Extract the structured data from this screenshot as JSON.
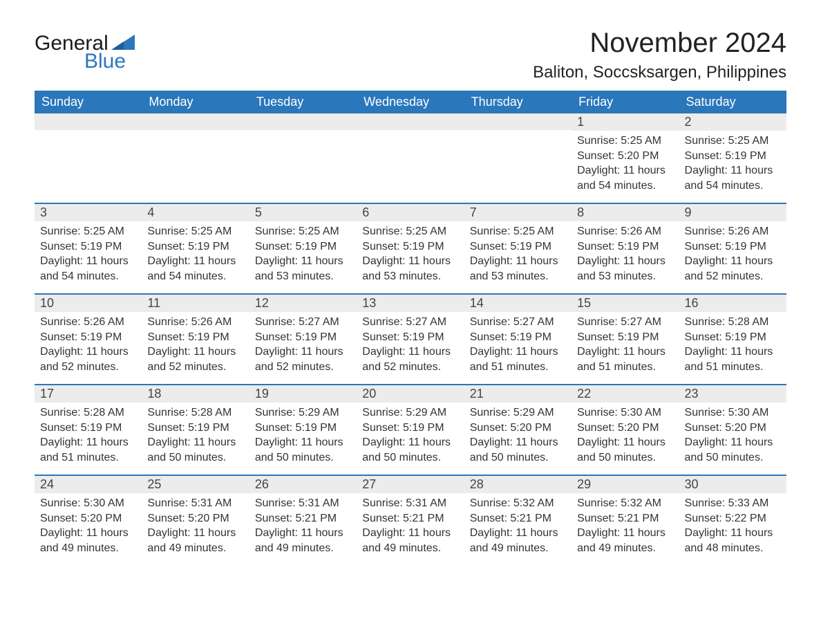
{
  "brand": {
    "word1": "General",
    "word2": "Blue"
  },
  "colors": {
    "header_bg": "#2a77bb",
    "header_text": "#ffffff",
    "daynum_bg": "#ececec",
    "text": "#333333",
    "brand_blue": "#2a77bb",
    "sep": "#2a77bb",
    "page_bg": "#ffffff"
  },
  "title": "November 2024",
  "location": "Baliton, Soccsksargen, Philippines",
  "weekdays": [
    "Sunday",
    "Monday",
    "Tuesday",
    "Wednesday",
    "Thursday",
    "Friday",
    "Saturday"
  ],
  "weeks": [
    [
      {
        "n": "",
        "sunrise": "",
        "sunset": "",
        "daylight": ""
      },
      {
        "n": "",
        "sunrise": "",
        "sunset": "",
        "daylight": ""
      },
      {
        "n": "",
        "sunrise": "",
        "sunset": "",
        "daylight": ""
      },
      {
        "n": "",
        "sunrise": "",
        "sunset": "",
        "daylight": ""
      },
      {
        "n": "",
        "sunrise": "",
        "sunset": "",
        "daylight": ""
      },
      {
        "n": "1",
        "sunrise": "Sunrise: 5:25 AM",
        "sunset": "Sunset: 5:20 PM",
        "daylight": "Daylight: 11 hours and 54 minutes."
      },
      {
        "n": "2",
        "sunrise": "Sunrise: 5:25 AM",
        "sunset": "Sunset: 5:19 PM",
        "daylight": "Daylight: 11 hours and 54 minutes."
      }
    ],
    [
      {
        "n": "3",
        "sunrise": "Sunrise: 5:25 AM",
        "sunset": "Sunset: 5:19 PM",
        "daylight": "Daylight: 11 hours and 54 minutes."
      },
      {
        "n": "4",
        "sunrise": "Sunrise: 5:25 AM",
        "sunset": "Sunset: 5:19 PM",
        "daylight": "Daylight: 11 hours and 54 minutes."
      },
      {
        "n": "5",
        "sunrise": "Sunrise: 5:25 AM",
        "sunset": "Sunset: 5:19 PM",
        "daylight": "Daylight: 11 hours and 53 minutes."
      },
      {
        "n": "6",
        "sunrise": "Sunrise: 5:25 AM",
        "sunset": "Sunset: 5:19 PM",
        "daylight": "Daylight: 11 hours and 53 minutes."
      },
      {
        "n": "7",
        "sunrise": "Sunrise: 5:25 AM",
        "sunset": "Sunset: 5:19 PM",
        "daylight": "Daylight: 11 hours and 53 minutes."
      },
      {
        "n": "8",
        "sunrise": "Sunrise: 5:26 AM",
        "sunset": "Sunset: 5:19 PM",
        "daylight": "Daylight: 11 hours and 53 minutes."
      },
      {
        "n": "9",
        "sunrise": "Sunrise: 5:26 AM",
        "sunset": "Sunset: 5:19 PM",
        "daylight": "Daylight: 11 hours and 52 minutes."
      }
    ],
    [
      {
        "n": "10",
        "sunrise": "Sunrise: 5:26 AM",
        "sunset": "Sunset: 5:19 PM",
        "daylight": "Daylight: 11 hours and 52 minutes."
      },
      {
        "n": "11",
        "sunrise": "Sunrise: 5:26 AM",
        "sunset": "Sunset: 5:19 PM",
        "daylight": "Daylight: 11 hours and 52 minutes."
      },
      {
        "n": "12",
        "sunrise": "Sunrise: 5:27 AM",
        "sunset": "Sunset: 5:19 PM",
        "daylight": "Daylight: 11 hours and 52 minutes."
      },
      {
        "n": "13",
        "sunrise": "Sunrise: 5:27 AM",
        "sunset": "Sunset: 5:19 PM",
        "daylight": "Daylight: 11 hours and 52 minutes."
      },
      {
        "n": "14",
        "sunrise": "Sunrise: 5:27 AM",
        "sunset": "Sunset: 5:19 PM",
        "daylight": "Daylight: 11 hours and 51 minutes."
      },
      {
        "n": "15",
        "sunrise": "Sunrise: 5:27 AM",
        "sunset": "Sunset: 5:19 PM",
        "daylight": "Daylight: 11 hours and 51 minutes."
      },
      {
        "n": "16",
        "sunrise": "Sunrise: 5:28 AM",
        "sunset": "Sunset: 5:19 PM",
        "daylight": "Daylight: 11 hours and 51 minutes."
      }
    ],
    [
      {
        "n": "17",
        "sunrise": "Sunrise: 5:28 AM",
        "sunset": "Sunset: 5:19 PM",
        "daylight": "Daylight: 11 hours and 51 minutes."
      },
      {
        "n": "18",
        "sunrise": "Sunrise: 5:28 AM",
        "sunset": "Sunset: 5:19 PM",
        "daylight": "Daylight: 11 hours and 50 minutes."
      },
      {
        "n": "19",
        "sunrise": "Sunrise: 5:29 AM",
        "sunset": "Sunset: 5:19 PM",
        "daylight": "Daylight: 11 hours and 50 minutes."
      },
      {
        "n": "20",
        "sunrise": "Sunrise: 5:29 AM",
        "sunset": "Sunset: 5:19 PM",
        "daylight": "Daylight: 11 hours and 50 minutes."
      },
      {
        "n": "21",
        "sunrise": "Sunrise: 5:29 AM",
        "sunset": "Sunset: 5:20 PM",
        "daylight": "Daylight: 11 hours and 50 minutes."
      },
      {
        "n": "22",
        "sunrise": "Sunrise: 5:30 AM",
        "sunset": "Sunset: 5:20 PM",
        "daylight": "Daylight: 11 hours and 50 minutes."
      },
      {
        "n": "23",
        "sunrise": "Sunrise: 5:30 AM",
        "sunset": "Sunset: 5:20 PM",
        "daylight": "Daylight: 11 hours and 50 minutes."
      }
    ],
    [
      {
        "n": "24",
        "sunrise": "Sunrise: 5:30 AM",
        "sunset": "Sunset: 5:20 PM",
        "daylight": "Daylight: 11 hours and 49 minutes."
      },
      {
        "n": "25",
        "sunrise": "Sunrise: 5:31 AM",
        "sunset": "Sunset: 5:20 PM",
        "daylight": "Daylight: 11 hours and 49 minutes."
      },
      {
        "n": "26",
        "sunrise": "Sunrise: 5:31 AM",
        "sunset": "Sunset: 5:21 PM",
        "daylight": "Daylight: 11 hours and 49 minutes."
      },
      {
        "n": "27",
        "sunrise": "Sunrise: 5:31 AM",
        "sunset": "Sunset: 5:21 PM",
        "daylight": "Daylight: 11 hours and 49 minutes."
      },
      {
        "n": "28",
        "sunrise": "Sunrise: 5:32 AM",
        "sunset": "Sunset: 5:21 PM",
        "daylight": "Daylight: 11 hours and 49 minutes."
      },
      {
        "n": "29",
        "sunrise": "Sunrise: 5:32 AM",
        "sunset": "Sunset: 5:21 PM",
        "daylight": "Daylight: 11 hours and 49 minutes."
      },
      {
        "n": "30",
        "sunrise": "Sunrise: 5:33 AM",
        "sunset": "Sunset: 5:22 PM",
        "daylight": "Daylight: 11 hours and 48 minutes."
      }
    ]
  ]
}
